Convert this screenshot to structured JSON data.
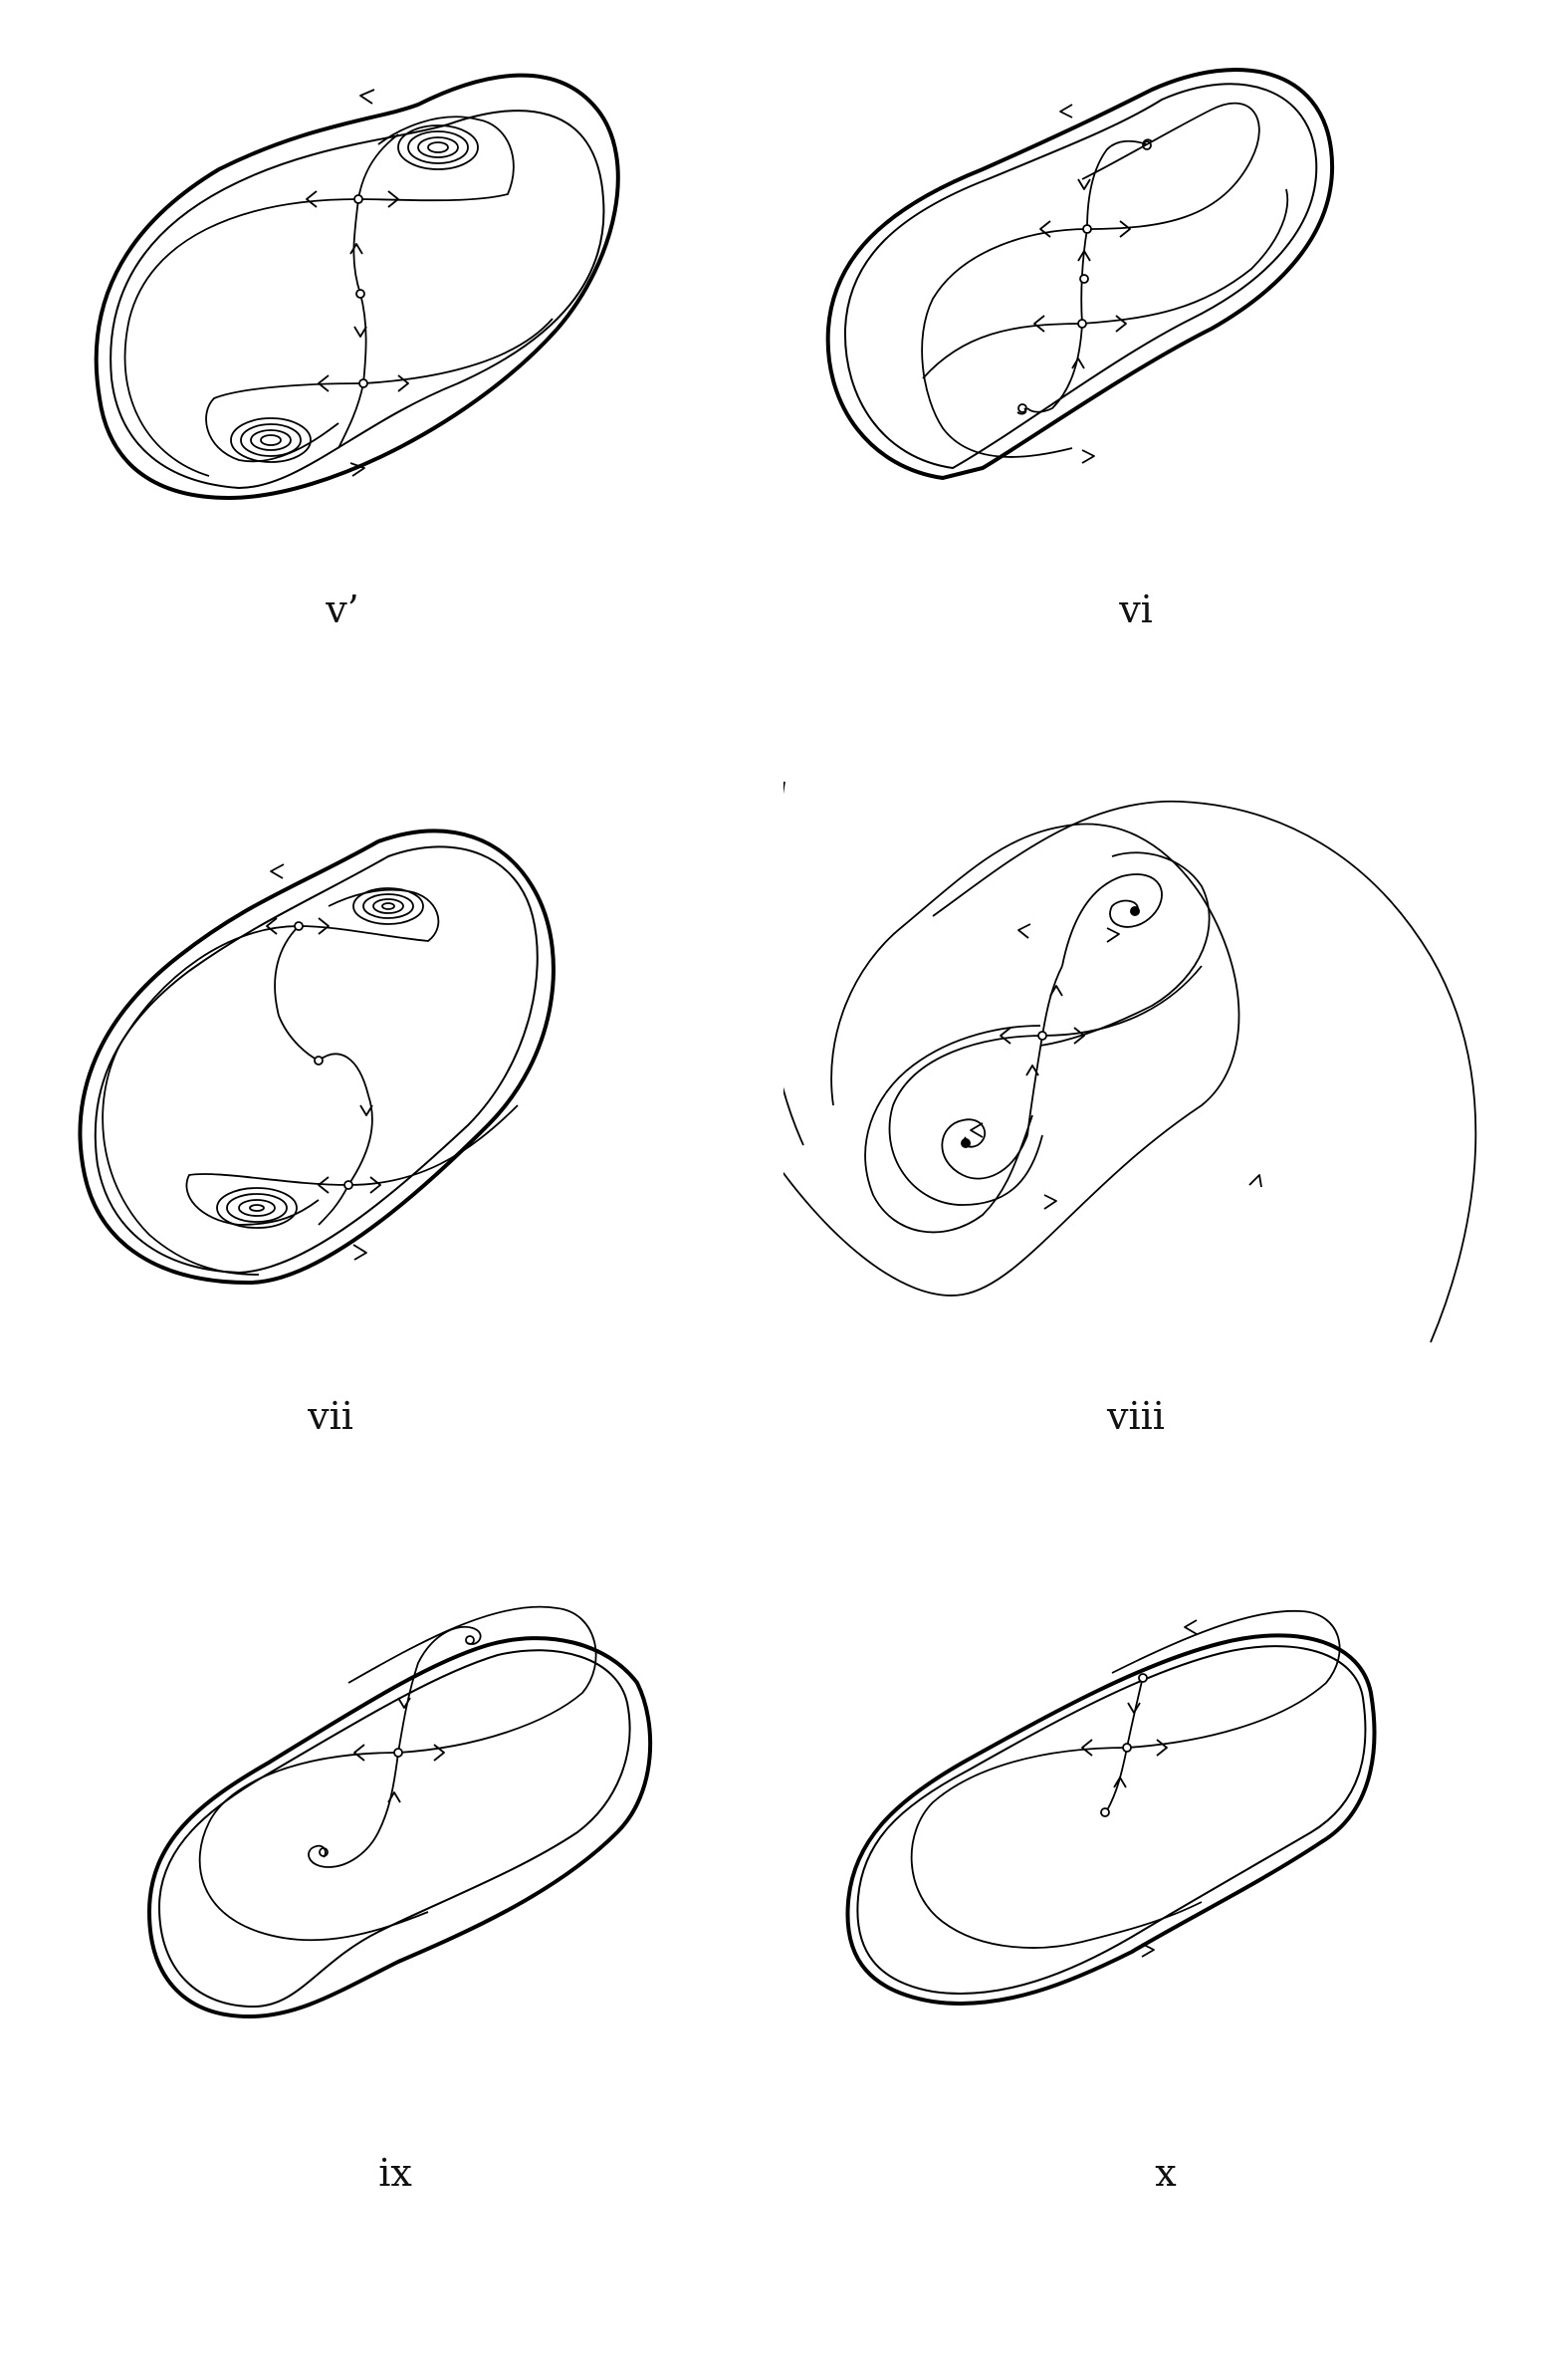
{
  "figure": {
    "panels": [
      {
        "label": "v’"
      },
      {
        "label": "vi"
      },
      {
        "label": "vii"
      },
      {
        "label": "viii"
      },
      {
        "label": "ix"
      },
      {
        "label": "x"
      }
    ]
  }
}
